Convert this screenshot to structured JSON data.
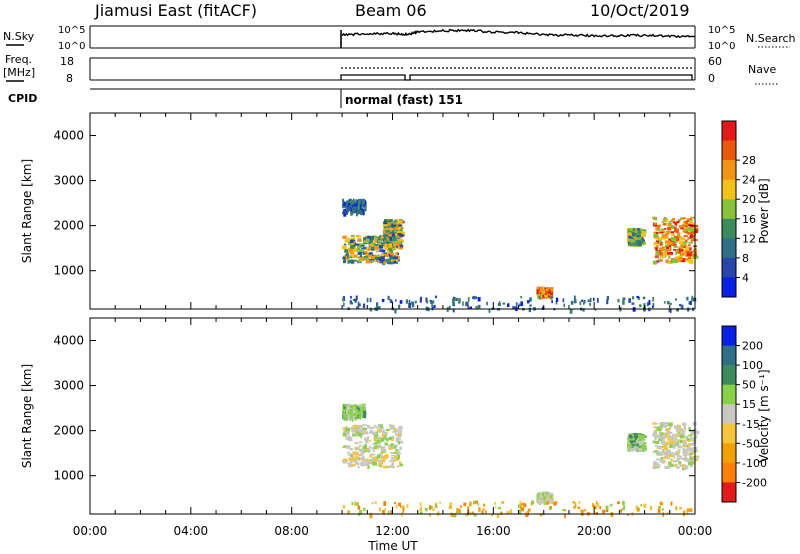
{
  "header": {
    "station": "Jiamusi East (fitACF)",
    "beam": "Beam 06",
    "date": "10/Oct/2019"
  },
  "noise_panel": {
    "left_label": "N.Sky",
    "right_label": "N.Search",
    "left_ticks": [
      "10^5",
      "10^0"
    ],
    "right_ticks": [
      "10^5",
      "10^0"
    ]
  },
  "freq_panel": {
    "left_label_1": "Freq.",
    "left_label_2": "[MHz]",
    "left_ticks": [
      "18",
      "8"
    ],
    "right_label": "Nave",
    "right_ticks": [
      "60",
      "0"
    ]
  },
  "cpid_panel": {
    "label": "CPID",
    "mode": "normal (fast) 151"
  },
  "colors": {
    "power_scale": [
      "#0a1fe6",
      "#2647a8",
      "#2f6f86",
      "#3d8a5f",
      "#88c23a",
      "#f2c21a",
      "#f29414",
      "#e8590c",
      "#e31a1c"
    ],
    "velocity_scale": [
      "#e31a1c",
      "#ff7f00",
      "#f0a000",
      "#f5c542",
      "#c8c8c0",
      "#8ad14a",
      "#3d8a5f",
      "#2f6f86",
      "#0a1fe6"
    ]
  },
  "chart_data": [
    {
      "type": "heatmap",
      "title": "",
      "quantity": "Power [dB]",
      "xlabel": "",
      "ylabel": "Slant Range [km]",
      "xlim": [
        0,
        24
      ],
      "ylim": [
        150,
        4500
      ],
      "yticks": [
        "1000",
        "2000",
        "3000",
        "4000"
      ],
      "colorbar_label": "Power [dB]",
      "colorbar_ticks": [
        "4",
        "8",
        "12",
        "16",
        "20",
        "24",
        "28"
      ],
      "features": [
        {
          "t_start": 10.0,
          "t_end": 10.9,
          "r_start": 2300,
          "r_end": 2600,
          "level": "low"
        },
        {
          "t_start": 10.0,
          "t_end": 12.2,
          "r_start": 1200,
          "r_end": 1800,
          "level": "mid"
        },
        {
          "t_start": 11.6,
          "t_end": 12.3,
          "r_start": 1550,
          "r_end": 2150,
          "level": "mid"
        },
        {
          "t_start": 17.7,
          "t_end": 18.3,
          "r_start": 450,
          "r_end": 650,
          "level": "high"
        },
        {
          "t_start": 21.3,
          "t_end": 21.9,
          "r_start": 1600,
          "r_end": 1950,
          "level": "mid"
        },
        {
          "t_start": 22.3,
          "t_end": 24.0,
          "r_start": 1200,
          "r_end": 2200,
          "level": "high"
        },
        {
          "t_start": 10.0,
          "t_end": 24.0,
          "r_start": 150,
          "r_end": 450,
          "level": "low"
        }
      ]
    },
    {
      "type": "heatmap",
      "title": "",
      "quantity": "Velocity [m s^-1]",
      "xlabel": "Time UT",
      "ylabel": "Slant Range [km]",
      "xlim": [
        0,
        24
      ],
      "ylim": [
        150,
        4500
      ],
      "xticks": [
        "00:00",
        "04:00",
        "08:00",
        "12:00",
        "16:00",
        "20:00",
        "00:00"
      ],
      "yticks": [
        "1000",
        "2000",
        "3000",
        "4000"
      ],
      "colorbar_label": "Velocity [m s⁻¹]",
      "colorbar_ticks": [
        "200",
        "100",
        "50",
        "15",
        "-15",
        "-50",
        "-100",
        "-200"
      ],
      "features": [
        {
          "t_start": 10.0,
          "t_end": 10.9,
          "r_start": 2300,
          "r_end": 2600,
          "level": "green"
        },
        {
          "t_start": 10.0,
          "t_end": 12.3,
          "r_start": 1200,
          "r_end": 2150,
          "level": "gray"
        },
        {
          "t_start": 17.7,
          "t_end": 18.3,
          "r_start": 450,
          "r_end": 650,
          "level": "gray"
        },
        {
          "t_start": 21.3,
          "t_end": 21.9,
          "r_start": 1600,
          "r_end": 1950,
          "level": "green"
        },
        {
          "t_start": 22.3,
          "t_end": 24.0,
          "r_start": 1200,
          "r_end": 2200,
          "level": "gray"
        },
        {
          "t_start": 10.0,
          "t_end": 24.0,
          "r_start": 150,
          "r_end": 450,
          "level": "orange"
        }
      ]
    }
  ],
  "noise_data": {
    "t": [
      10.0,
      11.0,
      12.0,
      12.6,
      13.0,
      14.0,
      15.0,
      16.0,
      17.0,
      18.0,
      19.0,
      20.0,
      21.0,
      22.0,
      23.0,
      24.0
    ],
    "n_sky": [
      3.0,
      3.2,
      3.3,
      3.1,
      3.6,
      3.9,
      4.0,
      3.6,
      3.5,
      3.0,
      2.9,
      2.8,
      2.8,
      2.9,
      2.7,
      2.6
    ]
  }
}
